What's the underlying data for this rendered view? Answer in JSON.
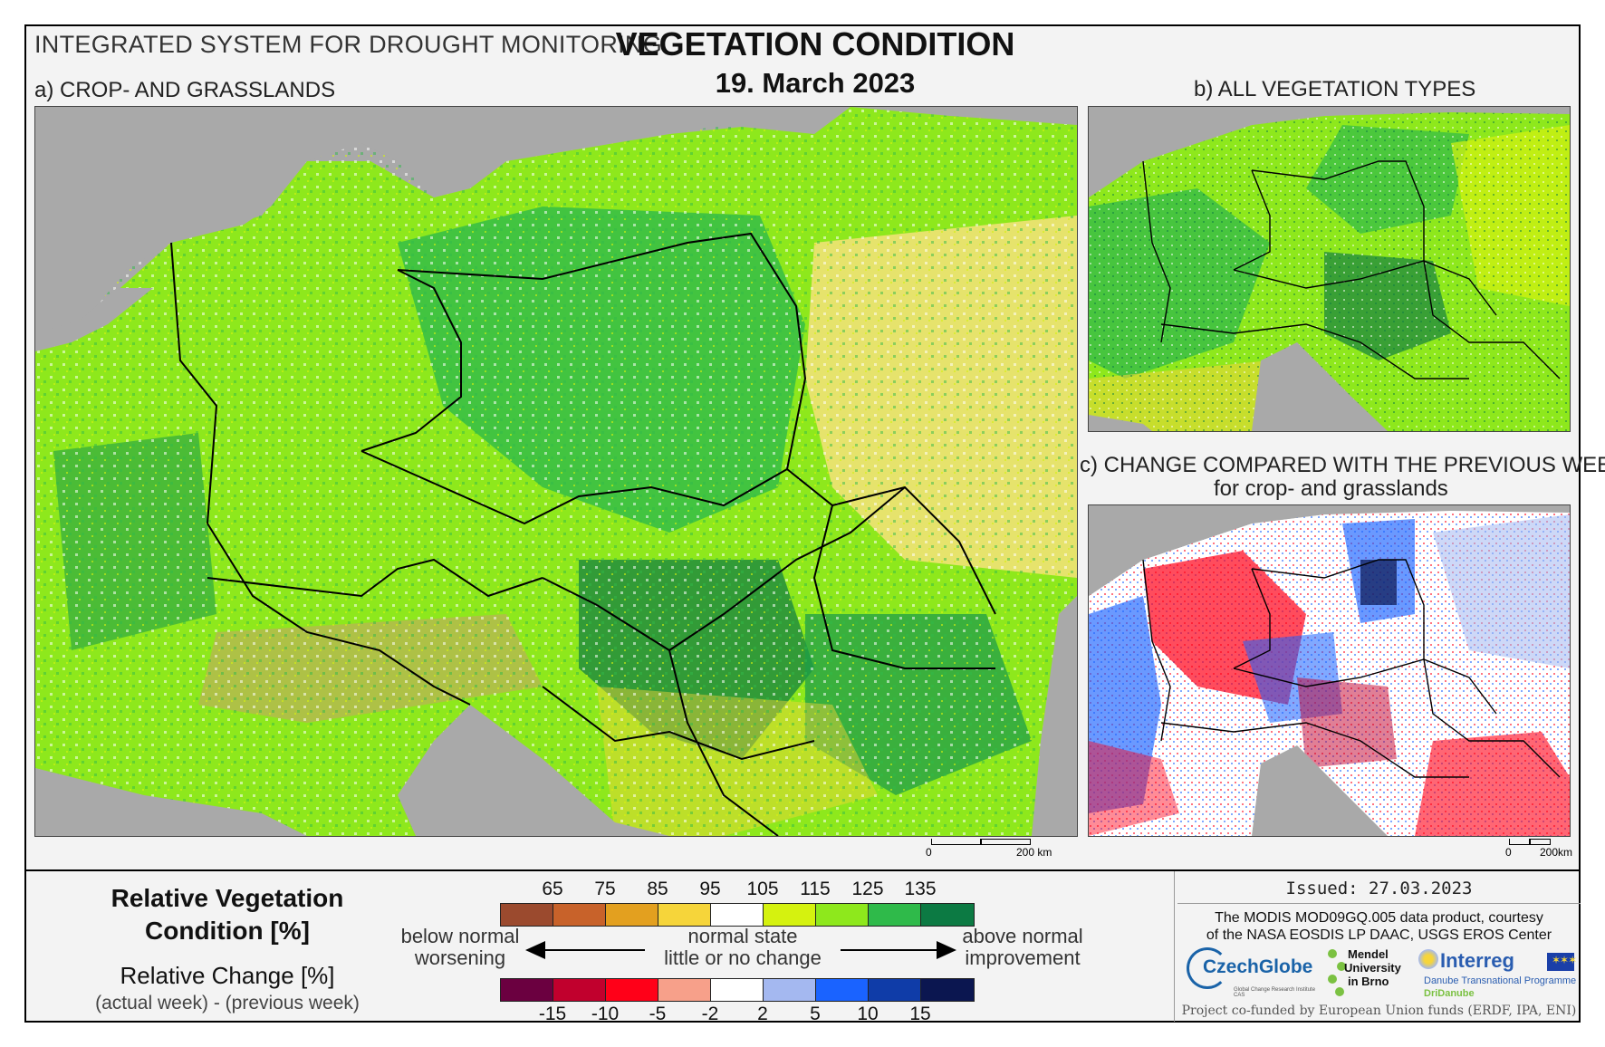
{
  "header": {
    "system": "INTEGRATED SYSTEM FOR DROUGHT MONITORING",
    "title": "VEGETATION CONDITION",
    "date": "19. March 2023"
  },
  "panels": {
    "a_label": "a) CROP- AND GRASSLANDS",
    "b_label": "b) ALL VEGETATION TYPES",
    "c_label": "c) CHANGE COMPARED WITH THE PREVIOUS WEEK",
    "c_sublabel": "for crop- and grasslands"
  },
  "scales": {
    "a_zero": "0",
    "a_km": "200 km",
    "c_zero": "0",
    "c_km": "200km"
  },
  "legend": {
    "rvc_title_1": "Relative Vegetation",
    "rvc_title_2": "Condition [%]",
    "rc_title": "Relative Change [%]",
    "rc_sub": "(actual week) - (previous week)",
    "condition_ticks": [
      "65",
      "75",
      "85",
      "95",
      "105",
      "115",
      "125",
      "135"
    ],
    "condition_colors": [
      "#9b4a2e",
      "#c8622a",
      "#e3a01f",
      "#f6d53a",
      "#ffffff",
      "#d5f20f",
      "#8ee81c",
      "#2fba4a",
      "#0c7a43"
    ],
    "change_ticks": [
      "-15",
      "-10",
      "-5",
      "-2",
      "2",
      "5",
      "10",
      "15"
    ],
    "change_colors": [
      "#6b0040",
      "#c1002d",
      "#ff0018",
      "#f7a08a",
      "#ffffff",
      "#a4b8f0",
      "#1a63ff",
      "#0f3ca8",
      "#0b1650"
    ],
    "left_1": "below normal",
    "left_2": "worsening",
    "mid_1": "normal state",
    "mid_2": "little or no change",
    "right_1": "above normal",
    "right_2": "improvement"
  },
  "credits": {
    "issued": "Issued: 27.03.2023",
    "source_1": "The MODIS MOD09GQ.005 data product, courtesy",
    "source_2": "of the NASA EOSDIS LP DAAC, USGS EROS Center",
    "czechglobe": "CzechGlobe",
    "czechglobe_sub": "Global Change Research Institute CAS",
    "mendel_1": "Mendel",
    "mendel_2": "University",
    "mendel_3": "in Brno",
    "interreg": "Interreg",
    "interreg_sub": "Danube Transnational Programme",
    "dridanube": "DriDanube",
    "funding": "Project co-funded by European Union funds (ERDF, IPA, ENI)"
  }
}
